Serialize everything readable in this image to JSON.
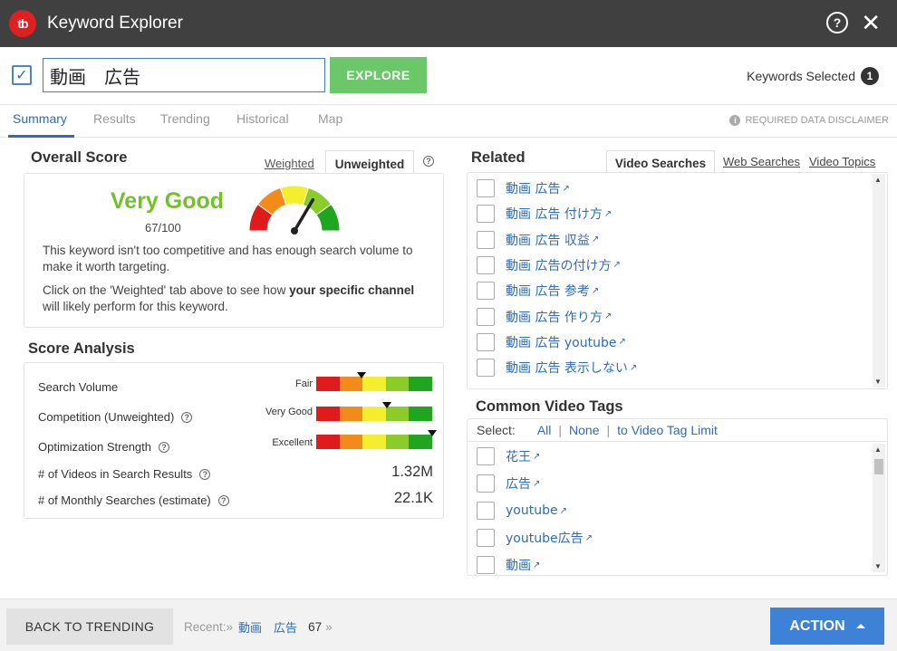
{
  "app": {
    "logo_text": "tb",
    "title": "Keyword Explorer"
  },
  "search": {
    "query": "動画　広告",
    "explore_label": "EXPLORE",
    "keywords_selected_label": "Keywords Selected",
    "keywords_selected_count": "1"
  },
  "tabs": [
    "Summary",
    "Results",
    "Trending",
    "Historical",
    "Map"
  ],
  "disclaimer": "REQUIRED DATA DISCLAIMER",
  "overall": {
    "title": "Overall Score",
    "weighted_label": "Weighted",
    "unweighted_label": "Unweighted",
    "rating": "Very Good",
    "score": "67/100",
    "gauge_value": 0.67,
    "description": "This keyword isn't too competitive and has enough search volume to make it worth targeting.",
    "hint_pre": "Click on the 'Weighted' tab above to see how ",
    "hint_bold": "your specific channel",
    "hint_post": " will likely perform for this keyword."
  },
  "analysis": {
    "title": "Score Analysis",
    "rows": [
      {
        "label": "Search Volume",
        "meter_label": "Fair",
        "level": 0.39
      },
      {
        "label": "Competition (Unweighted)",
        "meter_label": "Very Good",
        "level": 0.61
      },
      {
        "label": "Optimization Strength",
        "meter_label": "Excellent",
        "level": 1.0
      },
      {
        "label": "# of Videos in Search Results",
        "value": "1.32M"
      },
      {
        "label": "# of Monthly Searches (estimate)",
        "value": "22.1K"
      }
    ]
  },
  "related": {
    "title": "Related",
    "tabs": [
      "Video Searches",
      "Web Searches",
      "Video Topics"
    ],
    "items": [
      "動画 広告",
      "動画 広告 付け方",
      "動画 広告 収益",
      "動画 広告の付け方",
      "動画 広告 参考",
      "動画 広告 作り方",
      "動画 広告 youtube",
      "動画 広告 表示しない"
    ]
  },
  "tags": {
    "title": "Common Video Tags",
    "select_label": "Select:",
    "all": "All",
    "none": "None",
    "limit": "to Video Tag Limit",
    "items": [
      "花王",
      "広告",
      "youtube",
      "youtube広告",
      "動画"
    ]
  },
  "footer": {
    "back_label": "BACK TO TRENDING",
    "recent_label": "Recent:»",
    "recent_keyword": "動画　広告",
    "recent_score": "67",
    "recent_more": "»",
    "action_label": "ACTION"
  },
  "colors": {
    "accent": "#2d6db5",
    "explore": "#6cc66a",
    "action": "#3d82d6",
    "good": "#73c12a",
    "titlebar": "#404040"
  }
}
